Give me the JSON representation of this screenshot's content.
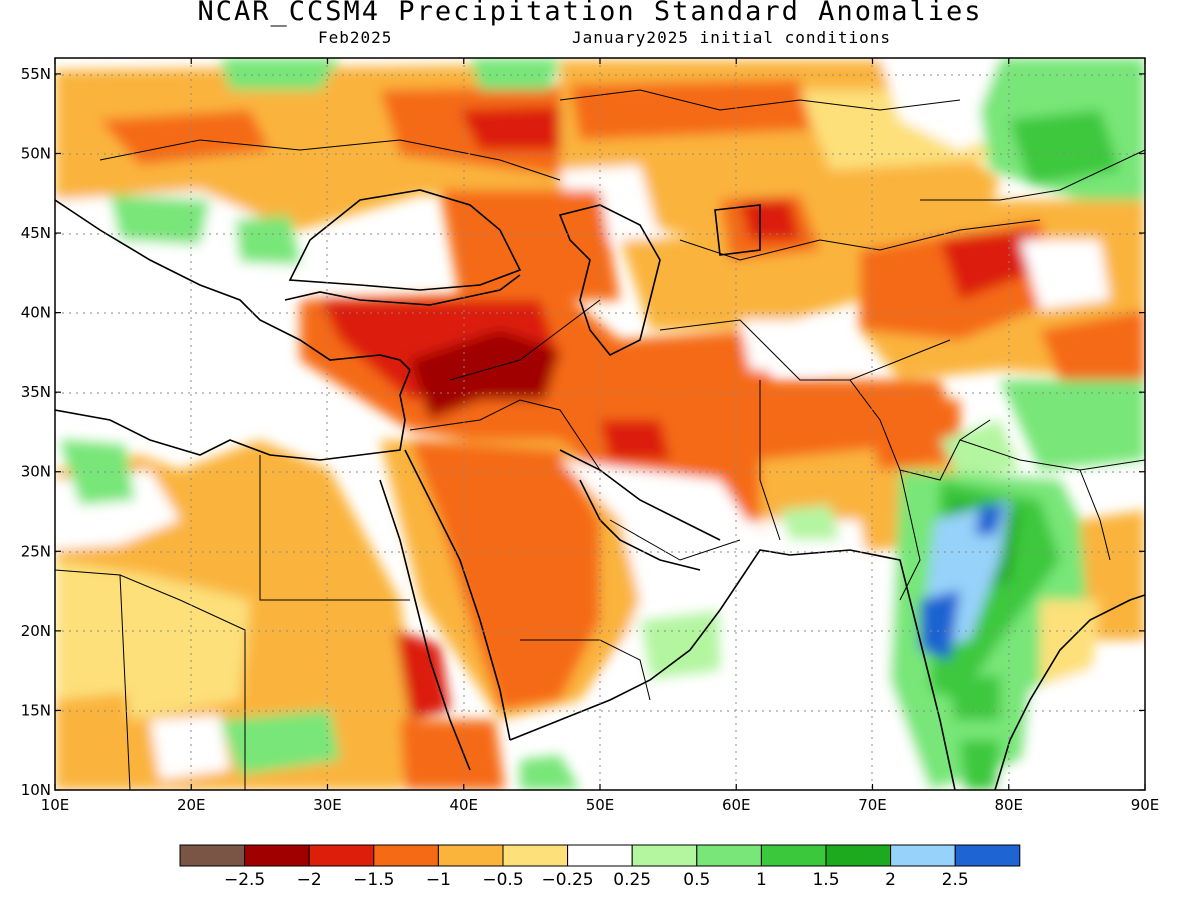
{
  "title": "NCAR_CCSM4 Precipitation Standard Anomalies",
  "subtitle_left": "Feb2025",
  "subtitle_right": "January2025 initial conditions",
  "map": {
    "lon_range": [
      10,
      90
    ],
    "lat_range": [
      10,
      56
    ],
    "lon_ticks": [
      "10E",
      "20E",
      "30E",
      "40E",
      "50E",
      "60E",
      "70E",
      "80E",
      "90E"
    ],
    "lat_ticks": [
      "10N",
      "15N",
      "20N",
      "25N",
      "30N",
      "35N",
      "40N",
      "45N",
      "50N",
      "55N"
    ],
    "grid": "dotted"
  },
  "colorbar": {
    "colors": [
      "#7a5546",
      "#a00000",
      "#dc1e0a",
      "#f56a14",
      "#fab43c",
      "#fde07a",
      "#ffffff",
      "#b4f5a0",
      "#78e678",
      "#3cc83c",
      "#1eaa1e",
      "#96d2fa",
      "#1e64d2"
    ],
    "labels": [
      "-2.5",
      "-2",
      "-1.5",
      "-1",
      "-0.5",
      "-0.25",
      "0.25",
      "0.5",
      "1",
      "1.5",
      "2",
      "2.5"
    ]
  },
  "legend_categories": {
    "strong_dry": "#a00000",
    "dry": "#dc1e0a",
    "moderate_dry": "#f56a14",
    "slight_dry": "#fab43c",
    "weak_dry": "#fde07a",
    "neutral": "#ffffff",
    "weak_wet": "#b4f5a0",
    "wet": "#78e678",
    "moderate_wet": "#3cc83c",
    "strong_wet": "#1eaa1e",
    "very_wet": "#96d2fa",
    "extreme_wet": "#1e64d2"
  }
}
